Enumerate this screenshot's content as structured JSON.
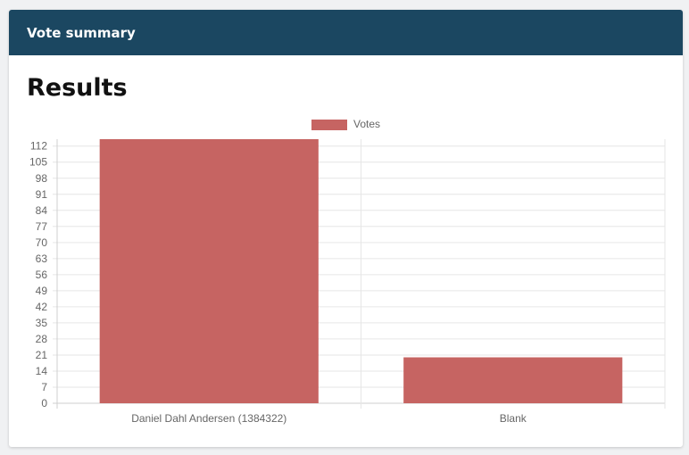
{
  "panel": {
    "title": "Vote summary"
  },
  "section": {
    "title": "Results"
  },
  "chart_data": {
    "type": "bar",
    "categories": [
      "Daniel Dahl Andersen (1384322)",
      "Blank"
    ],
    "series": [
      {
        "name": "Votes",
        "values": [
          115,
          20
        ],
        "color": "#c66462"
      }
    ],
    "yticks": [
      0,
      7,
      14,
      21,
      28,
      35,
      42,
      49,
      56,
      63,
      70,
      77,
      84,
      91,
      98,
      105,
      112
    ],
    "ylim": [
      0,
      115
    ],
    "grid": true,
    "legend_position": "top-center"
  }
}
